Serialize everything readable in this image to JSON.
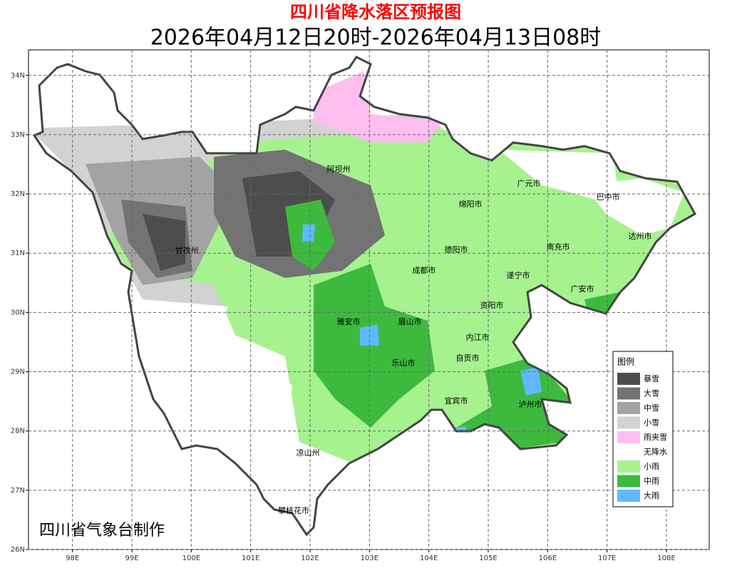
{
  "header": {
    "title": "四川省降水落区预报图",
    "subtitle": "2026年04月12日20时-2026年04月13日08时"
  },
  "map": {
    "lon_range": [
      97.26,
      108.72
    ],
    "lat_range": [
      26,
      34.43
    ],
    "xticks": [
      {
        "value": 98,
        "label": "98E"
      },
      {
        "value": 99,
        "label": "99E"
      },
      {
        "value": 100,
        "label": "100E"
      },
      {
        "value": 101,
        "label": "101E"
      },
      {
        "value": 102,
        "label": "102E"
      },
      {
        "value": 103,
        "label": "103E"
      },
      {
        "value": 104,
        "label": "104E"
      },
      {
        "value": 105,
        "label": "105E"
      },
      {
        "value": 106,
        "label": "106E"
      },
      {
        "value": 107,
        "label": "107E"
      },
      {
        "value": 108,
        "label": "108E"
      }
    ],
    "yticks": [
      {
        "value": 26,
        "label": "26N"
      },
      {
        "value": 27,
        "label": "27N"
      },
      {
        "value": 28,
        "label": "28N"
      },
      {
        "value": 29,
        "label": "29N"
      },
      {
        "value": 30,
        "label": "30N"
      },
      {
        "value": 31,
        "label": "31N"
      },
      {
        "value": 32,
        "label": "32N"
      },
      {
        "value": 33,
        "label": "33N"
      },
      {
        "value": 34,
        "label": "34N"
      }
    ],
    "grid": true,
    "cities": [
      "阿坝州",
      "广元市",
      "巴中市",
      "绵阳市",
      "甘孜州",
      "德阳市",
      "南充市",
      "达州市",
      "成都市",
      "遂宁市",
      "广安市",
      "资阳市",
      "雅安市",
      "眉山市",
      "内江市",
      "自贡市",
      "乐山市",
      "宜宾市",
      "泸州市",
      "凉山州",
      "攀枝花市"
    ],
    "credit": "四川省气象台制作"
  },
  "legend": {
    "title": "图例",
    "items": [
      {
        "name": "暴雪",
        "color": "#4d4d4d"
      },
      {
        "name": "大雪",
        "color": "#737373"
      },
      {
        "name": "中雪",
        "color": "#a3a3a3"
      },
      {
        "name": "小雪",
        "color": "#d2d2d2"
      },
      {
        "name": "雨夹雪",
        "color": "#ffbef0"
      },
      {
        "name": "无降水",
        "color": "#ffffff"
      },
      {
        "name": "小雨",
        "color": "#a6f28f"
      },
      {
        "name": "中雨",
        "color": "#3dba3d"
      },
      {
        "name": "大雨",
        "color": "#61b8ff"
      }
    ]
  }
}
